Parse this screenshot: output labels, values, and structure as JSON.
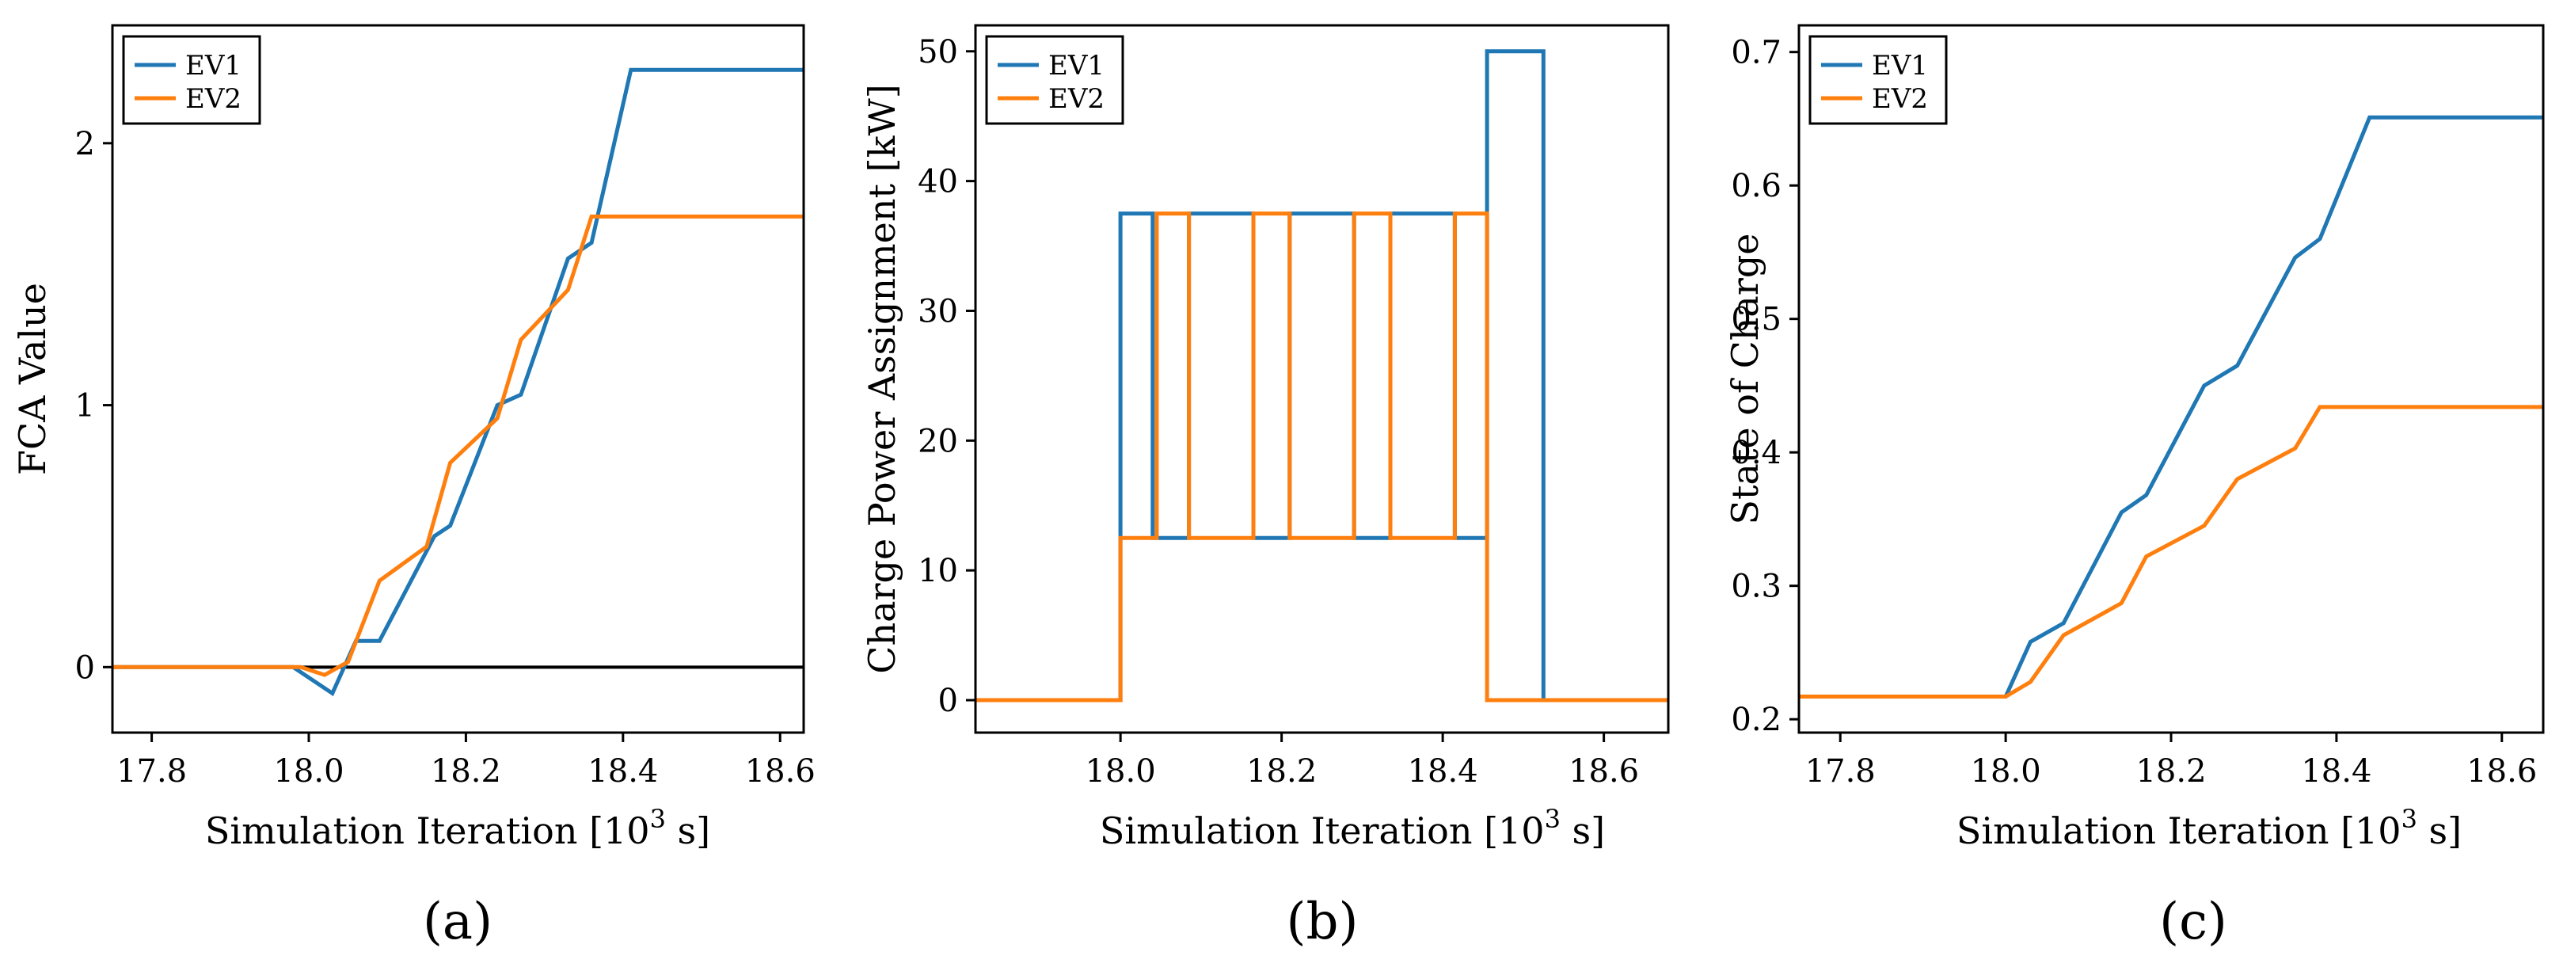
{
  "chart_data": [
    {
      "type": "line",
      "panel_label": "(a)",
      "xlabel": {
        "prefix": "Simulation Iteration [10",
        "sup": "3",
        "suffix": " s]"
      },
      "ylabel": "FCA Value",
      "xlim": [
        17.75,
        18.63
      ],
      "ylim": [
        -0.25,
        2.45
      ],
      "xticks": [
        17.8,
        18.0,
        18.2,
        18.4,
        18.6
      ],
      "xtick_labels": [
        "17.8",
        "18.0",
        "18.2",
        "18.4",
        "18.6"
      ],
      "yticks": [
        0,
        1,
        2
      ],
      "ytick_labels": [
        "0",
        "1",
        "2"
      ],
      "hline": 0,
      "legend": {
        "position": "top-left",
        "entries": [
          "EV1",
          "EV2"
        ]
      },
      "series": [
        {
          "name": "EV1",
          "color": "#1f77b4",
          "x": [
            17.75,
            17.98,
            18.03,
            18.06,
            18.09,
            18.16,
            18.18,
            18.24,
            18.27,
            18.33,
            18.36,
            18.41,
            18.63
          ],
          "y": [
            0,
            0,
            -0.1,
            0.1,
            0.1,
            0.5,
            0.54,
            1.0,
            1.04,
            1.56,
            1.62,
            2.28,
            2.28
          ]
        },
        {
          "name": "EV2",
          "color": "#ff7f0e",
          "x": [
            17.75,
            17.99,
            18.02,
            18.05,
            18.09,
            18.15,
            18.18,
            18.24,
            18.27,
            18.33,
            18.36,
            18.63
          ],
          "y": [
            0,
            0,
            -0.03,
            0.02,
            0.33,
            0.46,
            0.78,
            0.95,
            1.25,
            1.44,
            1.72,
            1.72
          ]
        }
      ]
    },
    {
      "type": "line",
      "panel_label": "(b)",
      "xlabel": {
        "prefix": "Simulation Iteration [10",
        "sup": "3",
        "suffix": " s]"
      },
      "ylabel": "Charge Power Assignment [kW]",
      "xlim": [
        17.82,
        18.68
      ],
      "ylim": [
        -2.5,
        52
      ],
      "xticks": [
        18.0,
        18.2,
        18.4,
        18.6
      ],
      "xtick_labels": [
        "18.0",
        "18.2",
        "18.4",
        "18.6"
      ],
      "yticks": [
        0,
        10,
        20,
        30,
        40,
        50
      ],
      "ytick_labels": [
        "0",
        "10",
        "20",
        "30",
        "40",
        "50"
      ],
      "legend": {
        "position": "top-left",
        "entries": [
          "EV1",
          "EV2"
        ]
      },
      "series": [
        {
          "name": "EV1",
          "color": "#1f77b4",
          "x": [
            17.82,
            18.0,
            18.0,
            18.04,
            18.04,
            18.085,
            18.085,
            18.165,
            18.165,
            18.21,
            18.21,
            18.29,
            18.29,
            18.335,
            18.335,
            18.415,
            18.415,
            18.455,
            18.455,
            18.525,
            18.525,
            18.68
          ],
          "y": [
            0,
            0,
            37.5,
            37.5,
            12.5,
            12.5,
            37.5,
            37.5,
            12.5,
            12.5,
            37.5,
            37.5,
            12.5,
            12.5,
            37.5,
            37.5,
            12.5,
            12.5,
            50,
            50,
            0,
            0
          ]
        },
        {
          "name": "EV2",
          "color": "#ff7f0e",
          "x": [
            17.82,
            18.0,
            18.0,
            18.045,
            18.045,
            18.085,
            18.085,
            18.165,
            18.165,
            18.21,
            18.21,
            18.29,
            18.29,
            18.335,
            18.335,
            18.415,
            18.415,
            18.455,
            18.455,
            18.68
          ],
          "y": [
            0,
            0,
            12.5,
            12.5,
            37.5,
            37.5,
            12.5,
            12.5,
            37.5,
            37.5,
            12.5,
            12.5,
            37.5,
            37.5,
            12.5,
            12.5,
            37.5,
            37.5,
            0,
            0
          ]
        }
      ]
    },
    {
      "type": "line",
      "panel_label": "(c)",
      "xlabel": {
        "prefix": "Simulation Iteration [10",
        "sup": "3",
        "suffix": " s]"
      },
      "ylabel": "State of Charge",
      "xlim": [
        17.75,
        18.65
      ],
      "ylim": [
        0.19,
        0.72
      ],
      "xticks": [
        17.8,
        18.0,
        18.2,
        18.4,
        18.6
      ],
      "xtick_labels": [
        "17.8",
        "18.0",
        "18.2",
        "18.4",
        "18.6"
      ],
      "yticks": [
        0.2,
        0.3,
        0.4,
        0.5,
        0.6,
        0.7
      ],
      "ytick_labels": [
        "0.2",
        "0.3",
        "0.4",
        "0.5",
        "0.6",
        "0.7"
      ],
      "legend": {
        "position": "top-left",
        "entries": [
          "EV1",
          "EV2"
        ]
      },
      "series": [
        {
          "name": "EV1",
          "color": "#1f77b4",
          "x": [
            17.75,
            18.0,
            18.03,
            18.07,
            18.14,
            18.17,
            18.24,
            18.28,
            18.35,
            18.38,
            18.44,
            18.65
          ],
          "y": [
            0.217,
            0.217,
            0.258,
            0.272,
            0.355,
            0.368,
            0.45,
            0.465,
            0.546,
            0.56,
            0.651,
            0.651
          ]
        },
        {
          "name": "EV2",
          "color": "#ff7f0e",
          "x": [
            17.75,
            18.0,
            18.03,
            18.07,
            18.14,
            18.17,
            18.24,
            18.28,
            18.35,
            18.38,
            18.65
          ],
          "y": [
            0.217,
            0.217,
            0.228,
            0.263,
            0.287,
            0.322,
            0.345,
            0.38,
            0.403,
            0.434,
            0.434
          ]
        }
      ]
    }
  ]
}
